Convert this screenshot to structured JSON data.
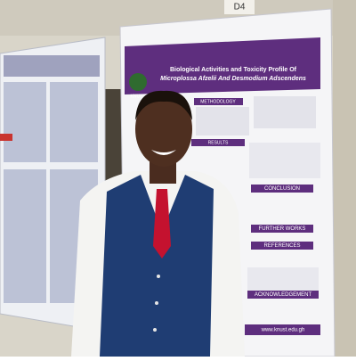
{
  "board_label": "D4",
  "poster": {
    "title": [
      "Biological Activities and Toxicity Profile Of",
      "Microplossa Afzelii And Desmodium Adscendens"
    ],
    "sections": [
      "METHODOLOGY",
      "RESULTS",
      "CONCLUSION",
      "FURTHER WORKS",
      "REFERENCES",
      "ACKNOWLEDGEMENT"
    ],
    "logo": "KNUST",
    "website": "www.knust.edu.gh"
  }
}
